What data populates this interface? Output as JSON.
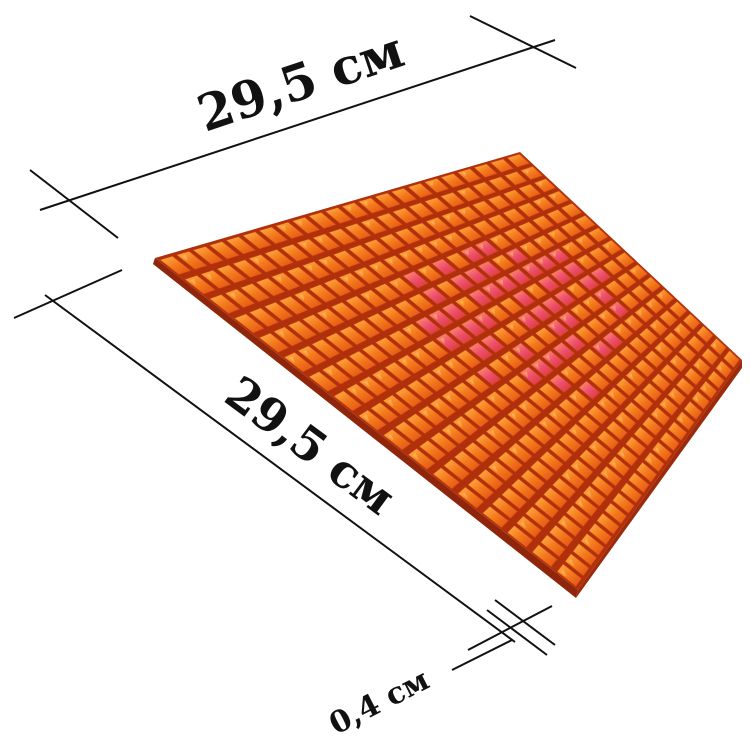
{
  "dimensions": {
    "width_label": "29,5 см",
    "length_label": "29,5 см",
    "thickness_label": "0,4 см"
  },
  "tile_grid": {
    "columns": 22,
    "rows": 17
  },
  "colors": {
    "background": "#ffffff",
    "grout": "#a9280b",
    "tile_orange": "#f2841d",
    "tile_deep": "#e8531a",
    "tile_pink": "#e7427a",
    "tile_highlight": "#ffc06a",
    "line": "#111111"
  }
}
